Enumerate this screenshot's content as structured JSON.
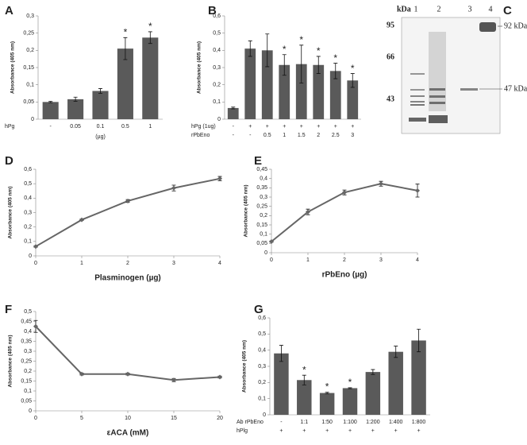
{
  "chart_data": [
    {
      "type": "bar",
      "panel": "A",
      "y_label": "Absorbance (405 nm)",
      "x_label": "(µg)",
      "rows": [
        {
          "label": "hPg",
          "values": [
            "-",
            "0.05",
            "0.1",
            "0.5",
            "1"
          ]
        }
      ],
      "values": [
        0.05,
        0.058,
        0.082,
        0.205,
        0.237
      ],
      "errors": [
        0.002,
        0.006,
        0.007,
        0.032,
        0.017
      ],
      "significant": [
        false,
        false,
        false,
        true,
        true
      ],
      "significance_label": "*",
      "color": "#5a5a5a",
      "ylim": [
        0,
        0.3
      ],
      "yticks": [
        0,
        {
          "value": 0.05,
          "label": "0,05"
        },
        {
          "value": 0.1,
          "label": "0,1"
        },
        {
          "value": 0.15,
          "label": "0,15"
        },
        {
          "value": 0.2,
          "label": "0,2"
        },
        {
          "value": 0.25,
          "label": "0,25"
        },
        {
          "value": 0.3,
          "label": "0,3"
        }
      ]
    },
    {
      "type": "bar",
      "panel": "B",
      "y_label": "Absorbance (405 nm)",
      "rows": [
        {
          "label": "hPg  (1ug)",
          "values": [
            "-",
            "+",
            "+",
            "+",
            "+",
            "+",
            "+",
            "+"
          ]
        },
        {
          "label": "rPbEno",
          "values": [
            "-",
            "-",
            "0.5",
            "1",
            "1.5",
            "2",
            "2.5",
            "3"
          ]
        }
      ],
      "values": [
        0.065,
        0.41,
        0.4,
        0.315,
        0.32,
        0.315,
        0.28,
        0.225
      ],
      "errors": [
        0.005,
        0.045,
        0.095,
        0.06,
        0.11,
        0.05,
        0.045,
        0.04
      ],
      "significant": [
        false,
        false,
        false,
        true,
        true,
        true,
        true,
        true
      ],
      "significance_label": "*",
      "color": "#5a5a5a",
      "ylim": [
        0,
        0.6
      ],
      "yticks": [
        0,
        {
          "value": 0.1,
          "label": "0,1"
        },
        {
          "value": 0.2,
          "label": "0,2"
        },
        {
          "value": 0.3,
          "label": "0,3"
        },
        {
          "value": 0.4,
          "label": "0,4"
        },
        {
          "value": 0.5,
          "label": "0,5"
        },
        {
          "value": 0.6,
          "label": "0,6"
        }
      ]
    },
    {
      "type": "line",
      "panel": "D",
      "y_label": "Absorbance (405 nm)",
      "x_label": "Plasminogen (µg)",
      "x": [
        0,
        1,
        2,
        3,
        4
      ],
      "values": [
        0.065,
        0.25,
        0.38,
        0.47,
        0.535
      ],
      "errors": [
        0.005,
        0.005,
        0.01,
        0.02,
        0.015
      ],
      "color": "#666666",
      "xlim": [
        0,
        4
      ],
      "xticks": [
        0,
        1,
        2,
        3,
        4
      ],
      "ylim": [
        0,
        0.6
      ],
      "yticks": [
        0,
        {
          "value": 0.1,
          "label": "0,1"
        },
        {
          "value": 0.2,
          "label": "0,2"
        },
        {
          "value": 0.3,
          "label": "0,3"
        },
        {
          "value": 0.4,
          "label": "0,4"
        },
        {
          "value": 0.5,
          "label": "0,5"
        },
        {
          "value": 0.6,
          "label": "0,6"
        }
      ]
    },
    {
      "type": "line",
      "panel": "E",
      "y_label": "Absorbance (405 nm)",
      "x_label": "rPbEno (µg)",
      "x": [
        0,
        1,
        2,
        3,
        4
      ],
      "values": [
        0.06,
        0.22,
        0.325,
        0.372,
        0.335
      ],
      "errors": [
        0.003,
        0.015,
        0.013,
        0.013,
        0.035
      ],
      "color": "#666666",
      "xlim": [
        0,
        4
      ],
      "xticks": [
        0,
        1,
        2,
        3,
        4
      ],
      "ylim": [
        0,
        0.45
      ],
      "yticks": [
        0,
        {
          "value": 0.05,
          "label": "0,05"
        },
        {
          "value": 0.1,
          "label": "0,1"
        },
        {
          "value": 0.15,
          "label": "0,15"
        },
        {
          "value": 0.2,
          "label": "0,2"
        },
        {
          "value": 0.25,
          "label": "0,25"
        },
        {
          "value": 0.3,
          "label": "0,3"
        },
        {
          "value": 0.35,
          "label": "0,35"
        },
        {
          "value": 0.4,
          "label": "0,4"
        },
        {
          "value": 0.45,
          "label": "0,45"
        }
      ]
    },
    {
      "type": "line",
      "panel": "F",
      "y_label": "Absorbance (405 nm)",
      "x_label": "εACA (mM)",
      "x": [
        0,
        5,
        10,
        15,
        20
      ],
      "values": [
        0.425,
        0.185,
        0.185,
        0.155,
        0.17
      ],
      "errors": [
        0.03,
        0.005,
        0.005,
        0.008,
        0.005
      ],
      "color": "#666666",
      "xlim": [
        0,
        20
      ],
      "xticks": [
        0,
        5,
        10,
        15,
        20
      ],
      "ylim": [
        0,
        0.5
      ],
      "yticks": [
        0,
        {
          "value": 0.05,
          "label": "0,05"
        },
        {
          "value": 0.1,
          "label": "0,1"
        },
        {
          "value": 0.15,
          "label": "0,15"
        },
        {
          "value": 0.2,
          "label": "0,2"
        },
        {
          "value": 0.25,
          "label": "0,25"
        },
        {
          "value": 0.3,
          "label": "0,3"
        },
        {
          "value": 0.35,
          "label": "0,35"
        },
        {
          "value": 0.4,
          "label": "0,4"
        },
        {
          "value": 0.45,
          "label": "0,45"
        },
        {
          "value": 0.5,
          "label": "0,5"
        }
      ]
    },
    {
      "type": "bar",
      "panel": "G",
      "y_label": "Absorbance (405 nm)",
      "rows": [
        {
          "label": "Ab rPbEno",
          "values": [
            "-",
            "1:1",
            "1:50",
            "1:100",
            "1:200",
            "1:400",
            "1:800"
          ]
        },
        {
          "label": "hPlg",
          "values": [
            "+",
            "+",
            "+",
            "+",
            "+",
            "+",
            "+"
          ]
        }
      ],
      "values": [
        0.38,
        0.215,
        0.135,
        0.165,
        0.265,
        0.39,
        0.46
      ],
      "errors": [
        0.05,
        0.03,
        0.005,
        0.003,
        0.015,
        0.035,
        0.07
      ],
      "significant": [
        false,
        true,
        true,
        true,
        false,
        false,
        false
      ],
      "significance_label": "*",
      "color": "#5a5a5a",
      "ylim": [
        0,
        0.6
      ],
      "yticks": [
        0,
        {
          "value": 0.1,
          "label": "0,1"
        },
        {
          "value": 0.2,
          "label": "0,2"
        },
        {
          "value": 0.3,
          "label": "0,3"
        },
        {
          "value": 0.4,
          "label": "0,4"
        },
        {
          "value": 0.5,
          "label": "0,5"
        },
        {
          "value": 0.6,
          "label": "0,6"
        }
      ]
    }
  ],
  "gel": {
    "panel": "C",
    "unit": "kDa",
    "lanes": [
      "1",
      "2",
      "3",
      "4"
    ],
    "markers": [
      "95",
      "66",
      "43"
    ],
    "band_labels": [
      "92 kDa",
      "47 kDa"
    ]
  }
}
